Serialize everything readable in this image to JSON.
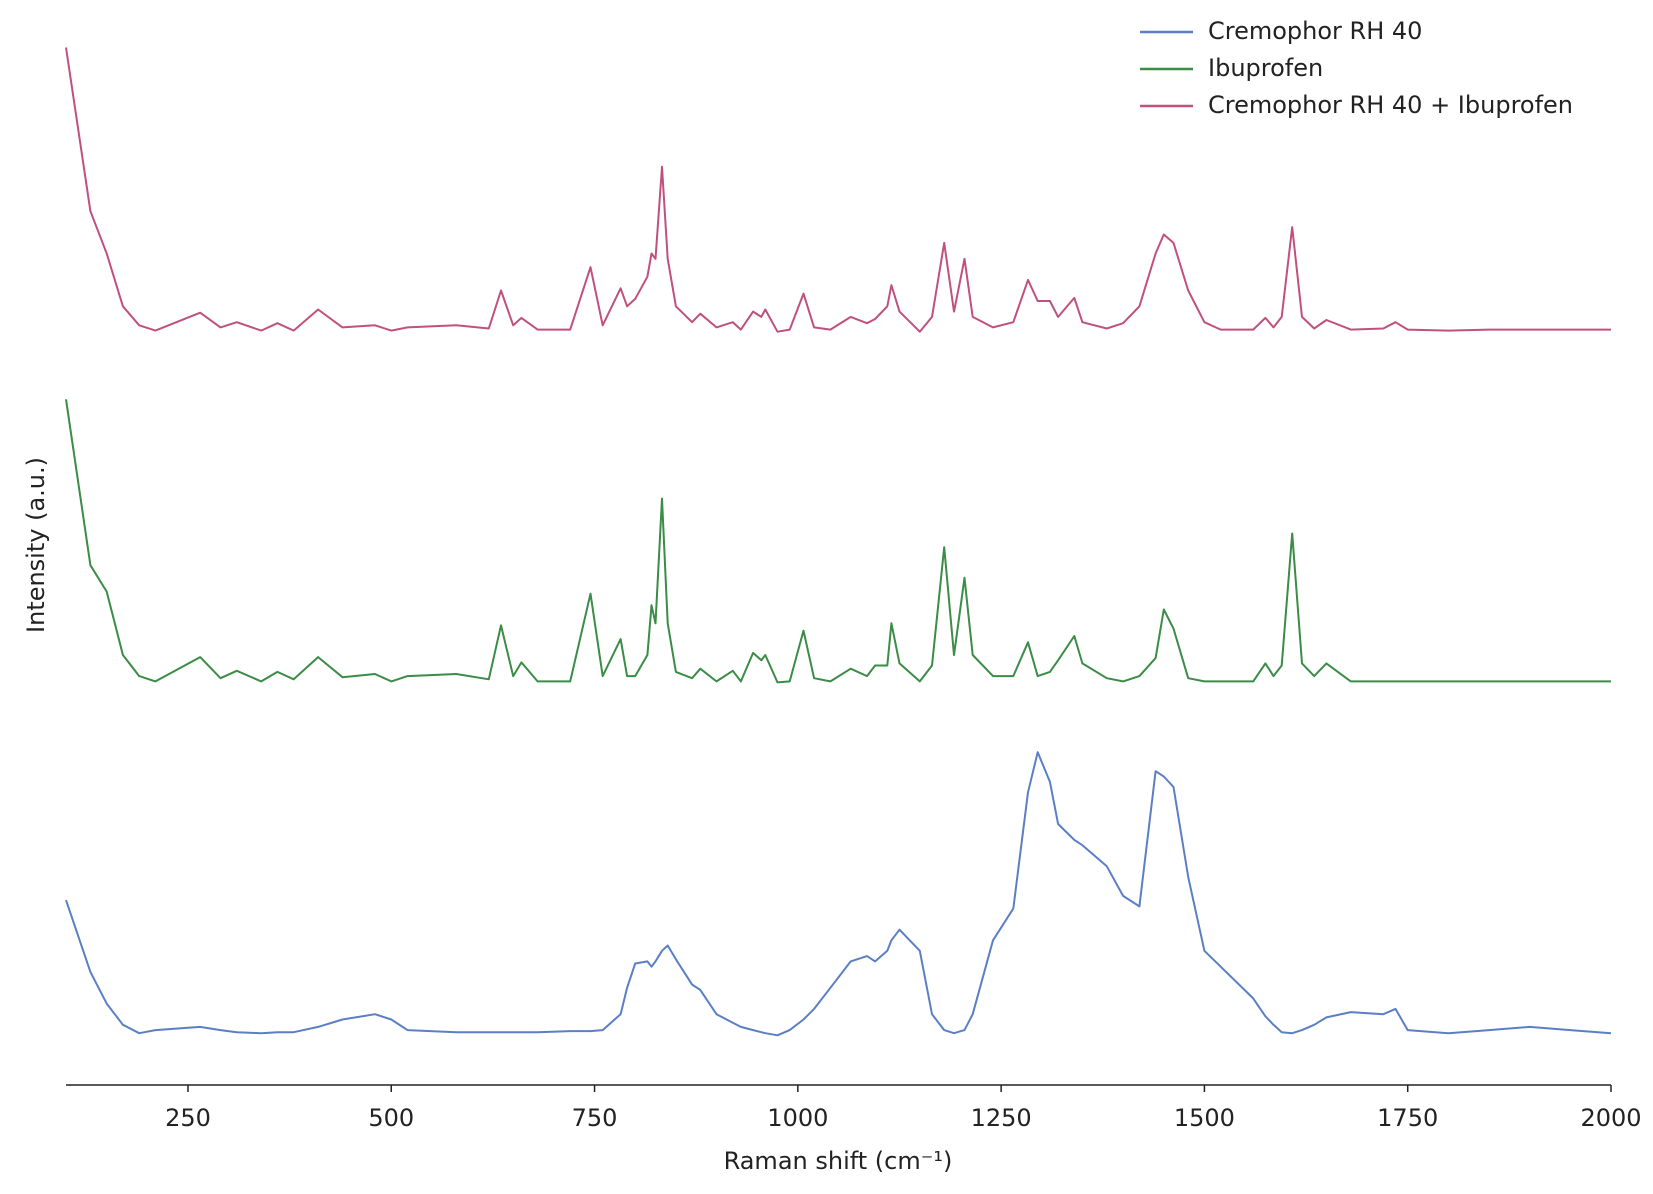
{
  "chart_data": {
    "type": "line",
    "xlabel": "Raman shift (cm⁻¹)",
    "ylabel": "Intensity (a.u.)",
    "x": [
      100,
      130,
      150,
      170,
      190,
      210,
      265,
      290,
      310,
      340,
      360,
      380,
      410,
      440,
      480,
      500,
      520,
      580,
      620,
      635,
      650,
      660,
      680,
      720,
      745,
      760,
      782,
      790,
      800,
      815,
      820,
      825,
      833,
      840,
      850,
      870,
      880,
      900,
      920,
      930,
      945,
      955,
      960,
      975,
      990,
      1007,
      1020,
      1040,
      1065,
      1085,
      1095,
      1110,
      1115,
      1125,
      1150,
      1165,
      1180,
      1192,
      1205,
      1215,
      1240,
      1265,
      1283,
      1295,
      1310,
      1320,
      1340,
      1350,
      1380,
      1400,
      1420,
      1440,
      1450,
      1462,
      1480,
      1500,
      1520,
      1560,
      1575,
      1585,
      1595,
      1608,
      1620,
      1635,
      1650,
      1680,
      1720,
      1735,
      1750,
      1800,
      1850,
      1900,
      1950,
      2000
    ],
    "series": [
      {
        "name": "Cremophor RH 40",
        "color": "#5b7fc4",
        "values": [
          175,
          107,
          77,
          57,
          49,
          52,
          55,
          52,
          50,
          49,
          50,
          50,
          55,
          62,
          67,
          62,
          52,
          50,
          50,
          50,
          50,
          50,
          50,
          51,
          51,
          52,
          67,
          92,
          115,
          117,
          112,
          117,
          127,
          132,
          119,
          95,
          90,
          67,
          59,
          55,
          52,
          50,
          49,
          47,
          52,
          62,
          72,
          92,
          117,
          122,
          117,
          127,
          137,
          147,
          127,
          67,
          52,
          49,
          52,
          67,
          137,
          167,
          277,
          315,
          287,
          247,
          232,
          227,
          207,
          179,
          169,
          297,
          292,
          282,
          197,
          127,
          112,
          82,
          65,
          57,
          50,
          49,
          52,
          57,
          64,
          69,
          67,
          72,
          52,
          49,
          52,
          55,
          52,
          49
        ]
      },
      {
        "name": "Ibuprofen",
        "color": "#3a8c46",
        "values": [
          649,
          492,
          467,
          407,
          387,
          382,
          405,
          385,
          392,
          382,
          391,
          384,
          405,
          386,
          389,
          382,
          387,
          389,
          384,
          435,
          387,
          400,
          382,
          382,
          465,
          387,
          422,
          387,
          387,
          407,
          454,
          437,
          555,
          437,
          391,
          385,
          394,
          382,
          392,
          382,
          409,
          402,
          407,
          381,
          382,
          430,
          385,
          382,
          394,
          387,
          397,
          397,
          437,
          399,
          382,
          397,
          509,
          407,
          480,
          407,
          387,
          387,
          419,
          387,
          391,
          402,
          425,
          399,
          385,
          382,
          387,
          404,
          450,
          432,
          385,
          382,
          382,
          382,
          399,
          387,
          397,
          522,
          399,
          387,
          399,
          382,
          382,
          382,
          382,
          382,
          382,
          382,
          382,
          382
        ]
      },
      {
        "name": "Cremophor RH 40 + Ibuprofen",
        "color": "#c0507e",
        "values": [
          982,
          827,
          787,
          737,
          719,
          714,
          731,
          717,
          722,
          714,
          721,
          714,
          734,
          717,
          719,
          714,
          717,
          719,
          716,
          752,
          719,
          726,
          715,
          715,
          774,
          719,
          754,
          737,
          744,
          765,
          787,
          782,
          869,
          782,
          737,
          722,
          730,
          717,
          722,
          715,
          732,
          727,
          734,
          713,
          715,
          749,
          717,
          715,
          727,
          721,
          725,
          737,
          757,
          732,
          713,
          727,
          797,
          732,
          782,
          727,
          717,
          722,
          762,
          742,
          742,
          727,
          745,
          722,
          716,
          721,
          737,
          787,
          805,
          797,
          752,
          722,
          715,
          715,
          726,
          717,
          727,
          812,
          727,
          716,
          724,
          715,
          716,
          722,
          715,
          714,
          715,
          715,
          715,
          715
        ]
      }
    ],
    "xlim": [
      100,
      2000
    ],
    "xticks": [
      250,
      500,
      750,
      1000,
      1250,
      1500,
      1750,
      2000
    ],
    "ylim": [
      0,
      990
    ],
    "legend": "upper right"
  }
}
